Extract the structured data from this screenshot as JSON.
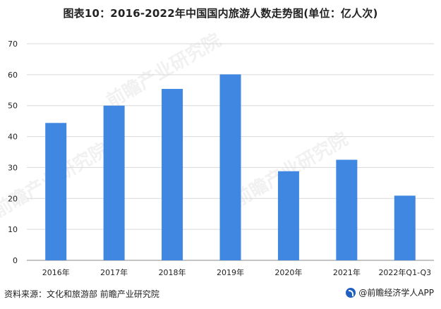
{
  "title": "图表10：2016-2022年中国国内旅游人数走势图(单位：亿人次)",
  "source": "资料来源：文化和旅游部 前瞻产业研究院",
  "brand": "@前瞻经济学人APP",
  "watermark": "前瞻产业研究院",
  "colors": {
    "bar": "#3f87e0",
    "grid": "#d9d9d9",
    "axis": "#888888",
    "text": "#222222"
  },
  "chart_data": {
    "type": "bar",
    "categories": [
      "2016年",
      "2017年",
      "2018年",
      "2019年",
      "2020年",
      "2021年",
      "2022年Q1-Q3"
    ],
    "values": [
      44.4,
      50.0,
      55.4,
      60.1,
      28.8,
      32.5,
      20.9
    ],
    "ylim": [
      0,
      70
    ],
    "yticks": [
      0,
      10,
      20,
      30,
      40,
      50,
      60,
      70
    ],
    "grid": true,
    "legend": false
  }
}
